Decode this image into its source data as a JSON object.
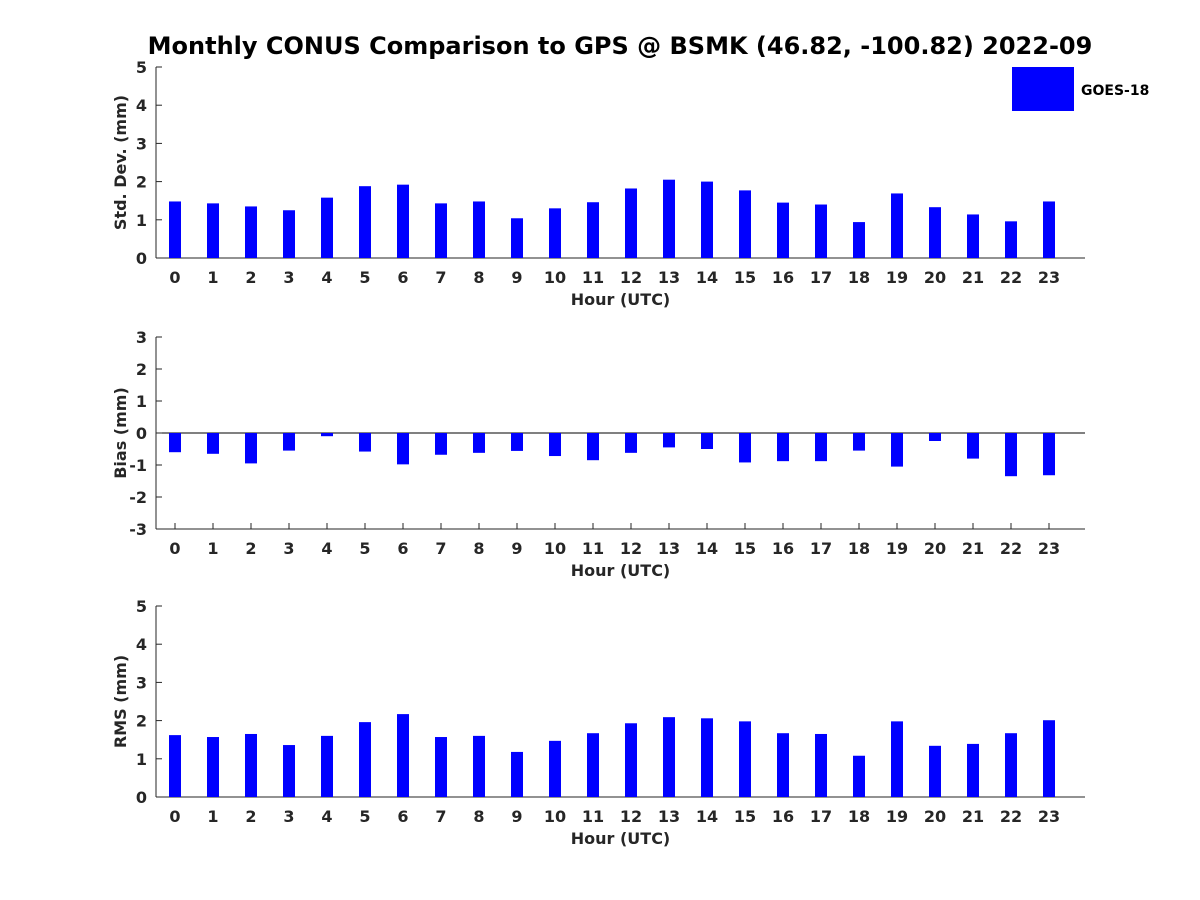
{
  "title": "Monthly CONUS Comparison to GPS @ BSMK (46.82, -100.82) 2022-09",
  "legend": {
    "label": "GOES-18",
    "placement": "top-right",
    "color": "#0000ff"
  },
  "chart_data": [
    {
      "type": "bar",
      "xlabel": "Hour (UTC)",
      "ylabel": "Std. Dev. (mm)",
      "ylim": [
        0,
        5
      ],
      "yticks": [
        "0",
        "1",
        "2",
        "3",
        "4",
        "5"
      ],
      "categories": [
        "0",
        "1",
        "2",
        "3",
        "4",
        "5",
        "6",
        "7",
        "8",
        "9",
        "10",
        "11",
        "12",
        "13",
        "14",
        "15",
        "16",
        "17",
        "18",
        "19",
        "20",
        "21",
        "22",
        "23"
      ],
      "series": [
        {
          "name": "GOES-18",
          "color": "#0000ff",
          "values": [
            1.48,
            1.43,
            1.35,
            1.25,
            1.58,
            1.88,
            1.92,
            1.43,
            1.48,
            1.04,
            1.3,
            1.46,
            1.82,
            2.05,
            2.0,
            1.77,
            1.45,
            1.4,
            0.94,
            1.69,
            1.33,
            1.14,
            0.96,
            1.48
          ]
        }
      ],
      "grid": false
    },
    {
      "type": "bar",
      "xlabel": "Hour (UTC)",
      "ylabel": "Bias (mm)",
      "ylim": [
        -3,
        3
      ],
      "yticks": [
        "-3",
        "-2",
        "-1",
        "0",
        "1",
        "2",
        "3"
      ],
      "categories": [
        "0",
        "1",
        "2",
        "3",
        "4",
        "5",
        "6",
        "7",
        "8",
        "9",
        "10",
        "11",
        "12",
        "13",
        "14",
        "15",
        "16",
        "17",
        "18",
        "19",
        "20",
        "21",
        "22",
        "23"
      ],
      "series": [
        {
          "name": "GOES-18",
          "color": "#0000ff",
          "values": [
            -0.6,
            -0.65,
            -0.95,
            -0.55,
            -0.1,
            -0.58,
            -0.98,
            -0.68,
            -0.62,
            -0.56,
            -0.72,
            -0.85,
            -0.62,
            -0.45,
            -0.5,
            -0.92,
            -0.88,
            -0.88,
            -0.55,
            -1.05,
            -0.25,
            -0.8,
            -1.35,
            -1.32
          ]
        }
      ],
      "grid": false
    },
    {
      "type": "bar",
      "xlabel": "Hour (UTC)",
      "ylabel": "RMS (mm)",
      "ylim": [
        0,
        5
      ],
      "yticks": [
        "0",
        "1",
        "2",
        "3",
        "4",
        "5"
      ],
      "categories": [
        "0",
        "1",
        "2",
        "3",
        "4",
        "5",
        "6",
        "7",
        "8",
        "9",
        "10",
        "11",
        "12",
        "13",
        "14",
        "15",
        "16",
        "17",
        "18",
        "19",
        "20",
        "21",
        "22",
        "23"
      ],
      "series": [
        {
          "name": "GOES-18",
          "color": "#0000ff",
          "values": [
            1.62,
            1.57,
            1.65,
            1.36,
            1.6,
            1.96,
            2.17,
            1.57,
            1.6,
            1.18,
            1.47,
            1.67,
            1.93,
            2.09,
            2.06,
            1.98,
            1.67,
            1.65,
            1.08,
            1.98,
            1.34,
            1.39,
            1.67,
            2.01
          ]
        }
      ],
      "grid": false
    }
  ]
}
